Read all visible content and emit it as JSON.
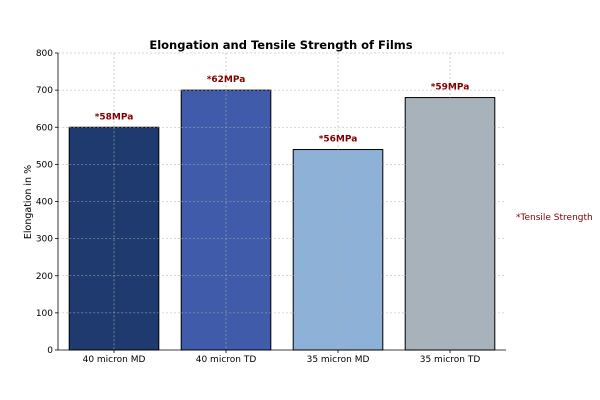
{
  "chart_data": {
    "type": "bar",
    "title": "Elongation and Tensile Strength of Films",
    "xlabel": "",
    "ylabel": "Elongation in %",
    "ylim": [
      0,
      800
    ],
    "yticks": [
      0,
      100,
      200,
      300,
      400,
      500,
      600,
      700,
      800
    ],
    "grid": true,
    "categories": [
      "40 micron MD",
      "40 micron TD",
      "35 micron MD",
      "35 micron TD"
    ],
    "values": [
      600,
      700,
      540,
      680
    ],
    "bar_annotations": [
      "*58MPa",
      "*62MPa",
      "*56MPa",
      "*59MPa"
    ],
    "bar_colors": [
      "#1f3a6e",
      "#3f5ba9",
      "#8eb1d8",
      "#a7b2bb"
    ],
    "annotation_color": "#800000",
    "side_note": "*Tensile Strength"
  }
}
